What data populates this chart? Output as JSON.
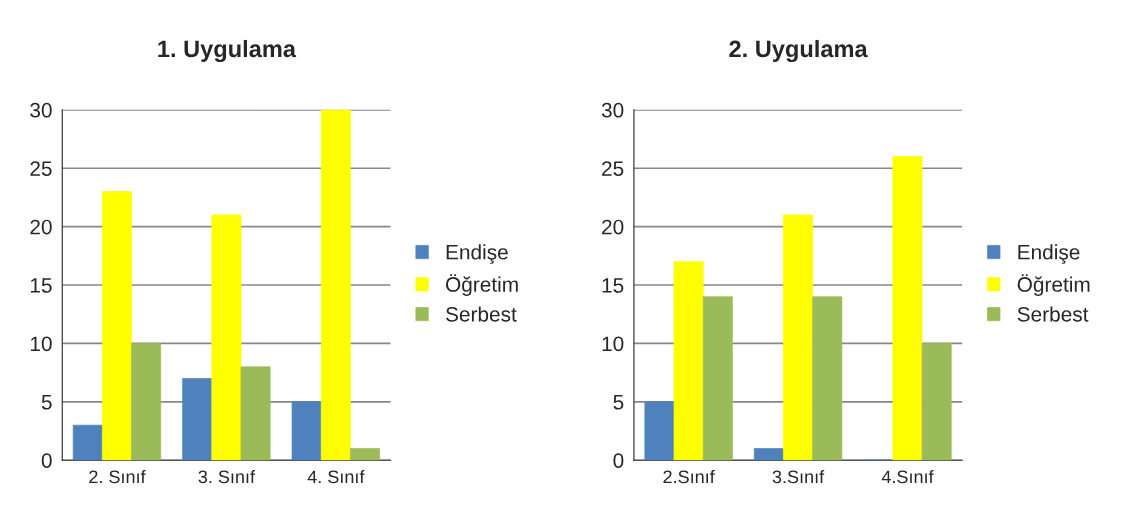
{
  "chart_data": [
    {
      "type": "bar",
      "title": "1. Uygulama",
      "categories": [
        "2. Sınıf",
        "3. Sınıf",
        "4. Sınıf"
      ],
      "series": [
        {
          "name": "Endişe",
          "color": "#4f81bd",
          "values": [
            3,
            7,
            5
          ]
        },
        {
          "name": "Öğretim",
          "color": "#ffff00",
          "values": [
            23,
            21,
            30
          ]
        },
        {
          "name": "Serbest",
          "color": "#9bbb59",
          "values": [
            10,
            8,
            1
          ]
        }
      ],
      "ylim": [
        0,
        30
      ],
      "yticks": [
        0,
        5,
        10,
        15,
        20,
        25,
        30
      ],
      "grid": "y",
      "legend": "right"
    },
    {
      "type": "bar",
      "title": "2. Uygulama",
      "categories": [
        "2.Sınıf",
        "3.Sınıf",
        "4.Sınıf"
      ],
      "series": [
        {
          "name": "Endişe",
          "color": "#4f81bd",
          "values": [
            5,
            1,
            0
          ]
        },
        {
          "name": "Öğretim",
          "color": "#ffff00",
          "values": [
            17,
            21,
            26
          ]
        },
        {
          "name": "Serbest",
          "color": "#9bbb59",
          "values": [
            14,
            14,
            10
          ]
        }
      ],
      "ylim": [
        0,
        30
      ],
      "yticks": [
        0,
        5,
        10,
        15,
        20,
        25,
        30
      ],
      "grid": "y",
      "legend": "right"
    }
  ]
}
